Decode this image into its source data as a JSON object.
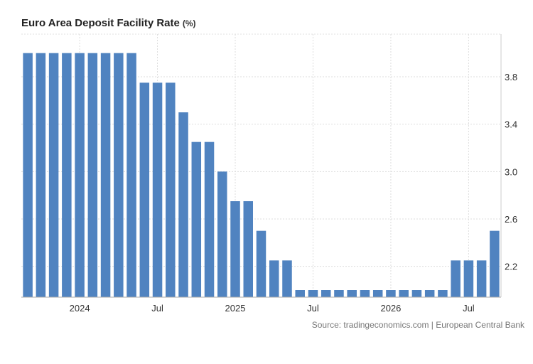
{
  "chart_data": {
    "type": "bar",
    "title": "Euro Area Deposit Facility Rate",
    "unit": "(%)",
    "source": "Source: tradingeconomics.com | European Central Bank",
    "color": "#5083c0",
    "ylim": [
      1.94,
      4.16
    ],
    "y_ticks": [
      2.2,
      2.6,
      3.0,
      3.4,
      3.8
    ],
    "y_tick_labels": [
      "2.2",
      "2.6",
      "3.0",
      "3.4",
      "3.8"
    ],
    "x_tick_labels": [
      {
        "index": 4.5,
        "label": "2024"
      },
      {
        "index": 10.5,
        "label": "Jul"
      },
      {
        "index": 16.5,
        "label": "2025"
      },
      {
        "index": 22.5,
        "label": "Jul"
      },
      {
        "index": 28.5,
        "label": "2026"
      },
      {
        "index": 34.5,
        "label": "Jul"
      }
    ],
    "grid": true,
    "values": [
      4.0,
      4.0,
      4.0,
      4.0,
      4.0,
      4.0,
      4.0,
      4.0,
      4.0,
      3.75,
      3.75,
      3.75,
      3.5,
      3.25,
      3.25,
      3.0,
      2.75,
      2.75,
      2.5,
      2.25,
      2.25,
      2.0,
      2.0,
      2.0,
      2.0,
      2.0,
      2.0,
      2.0,
      2.0,
      2.0,
      2.0,
      2.0,
      2.0,
      2.25,
      2.25,
      2.25,
      2.5
    ]
  }
}
